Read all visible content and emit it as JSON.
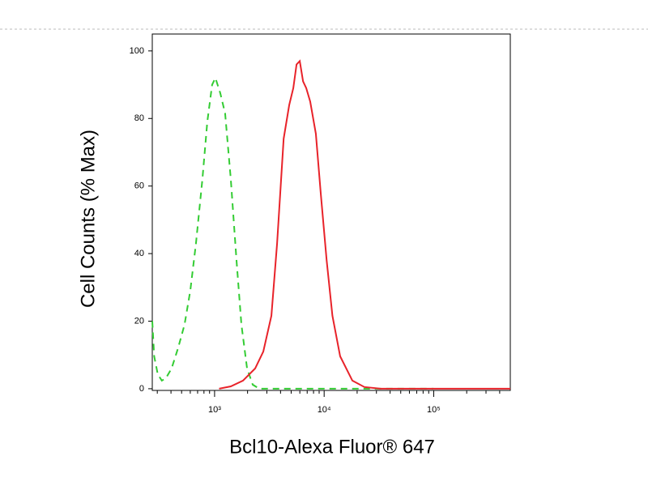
{
  "chart_data": {
    "type": "line",
    "xlabel": "Bcl10-Alexa Fluor® 647",
    "ylabel": "Cell Counts (% Max)",
    "xscale": "log",
    "xlim": [
      270,
      500000
    ],
    "ylim": [
      -0.5,
      105
    ],
    "xticks": [
      {
        "value": 1000,
        "label": "10³"
      },
      {
        "value": 10000,
        "label": "10⁴"
      },
      {
        "value": 100000,
        "label": "10⁵"
      }
    ],
    "xminorticks": [
      300,
      400,
      500,
      600,
      700,
      800,
      900,
      2000,
      3000,
      4000,
      5000,
      6000,
      7000,
      8000,
      9000,
      20000,
      30000,
      40000,
      50000,
      60000,
      70000,
      80000,
      90000,
      200000,
      300000,
      400000
    ],
    "yticks": [
      0,
      20,
      40,
      60,
      80,
      100
    ],
    "series": [
      {
        "color": "#33cc33",
        "linestyle": "dashed",
        "x": [
          270,
          281,
          303,
          330,
          359,
          405,
          464,
          532,
          600,
          676,
          774,
          858,
          950,
          1017,
          1127,
          1248,
          1406,
          1585,
          1757,
          1979,
          2229,
          2557,
          10000,
          100000
        ],
        "values": [
          20,
          9.6,
          4.3,
          2.4,
          3.1,
          6,
          12,
          19,
          29,
          43,
          62,
          79,
          90,
          92,
          87.5,
          81.5,
          62,
          38,
          19,
          6,
          1.2,
          0,
          0,
          0
        ]
      },
      {
        "color": "#e8232a",
        "linestyle": "solid",
        "x": [
          1100,
          1406,
          1816,
          2345,
          2783,
          3300,
          3720,
          4270,
          4800,
          5230,
          5600,
          5990,
          6420,
          6860,
          7460,
          8400,
          9330,
          10540,
          11900,
          14000,
          18100,
          23300,
          32800,
          500000
        ],
        "values": [
          0,
          0.7,
          2.4,
          6,
          11,
          21.6,
          43,
          74,
          84,
          89,
          96,
          97,
          91,
          89,
          85,
          75.5,
          57.5,
          38,
          21.6,
          9.6,
          2.4,
          0.5,
          0,
          0
        ]
      }
    ]
  }
}
